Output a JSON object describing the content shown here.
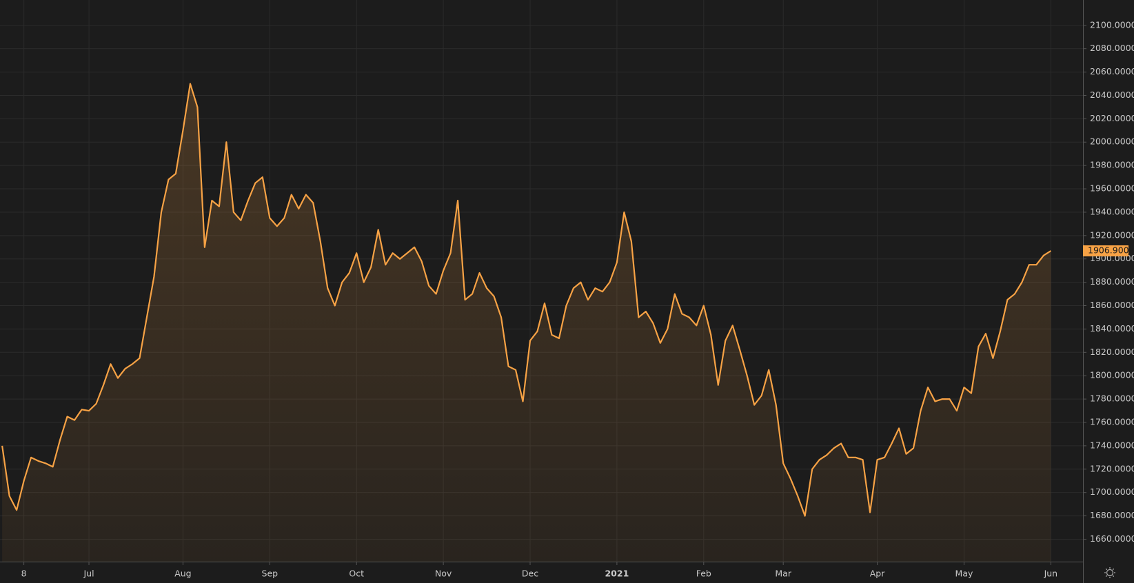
{
  "chart_data": {
    "type": "area",
    "categories": [
      null,
      null,
      null,
      "8",
      null,
      null,
      null,
      null,
      null,
      null,
      null,
      null,
      "Jul",
      null,
      null,
      null,
      null,
      null,
      null,
      null,
      null,
      null,
      null,
      null,
      null,
      "Aug",
      null,
      null,
      null,
      null,
      null,
      null,
      null,
      null,
      null,
      null,
      null,
      "Sep",
      null,
      null,
      null,
      null,
      null,
      null,
      null,
      null,
      null,
      null,
      null,
      "Oct",
      null,
      null,
      null,
      null,
      null,
      null,
      null,
      null,
      null,
      null,
      null,
      "Nov",
      null,
      null,
      null,
      null,
      null,
      null,
      null,
      null,
      null,
      null,
      null,
      "Dec",
      null,
      null,
      null,
      null,
      null,
      null,
      null,
      null,
      null,
      null,
      null,
      "2021",
      null,
      null,
      null,
      null,
      null,
      null,
      null,
      null,
      null,
      null,
      null,
      "Feb",
      null,
      null,
      null,
      null,
      null,
      null,
      null,
      null,
      null,
      null,
      "Mar",
      null,
      null,
      null,
      null,
      null,
      null,
      null,
      null,
      null,
      null,
      null,
      null,
      "Apr",
      null,
      null,
      null,
      null,
      null,
      null,
      null,
      null,
      null,
      null,
      null,
      "May",
      null,
      null,
      null,
      null,
      null,
      null,
      null,
      null,
      null,
      null,
      null,
      "Jun"
    ],
    "series": [
      {
        "color": "#f7a245",
        "values": [
          1740,
          1697,
          1685,
          1710,
          1730,
          1727,
          1725,
          1722,
          1745,
          1765,
          1762,
          1771,
          1770,
          1776,
          1792,
          1810,
          1798,
          1806,
          1810,
          1815,
          1850,
          1885,
          1940,
          1968,
          1973,
          2010,
          2050,
          2030,
          1910,
          1950,
          1945,
          2000,
          1940,
          1933,
          1950,
          1965,
          1970,
          1935,
          1928,
          1935,
          1955,
          1943,
          1955,
          1948,
          1915,
          1875,
          1860,
          1880,
          1888,
          1905,
          1880,
          1893,
          1925,
          1895,
          1905,
          1900,
          1905,
          1910,
          1898,
          1877,
          1870,
          1890,
          1905,
          1950,
          1865,
          1870,
          1888,
          1875,
          1868,
          1850,
          1808,
          1805,
          1778,
          1830,
          1838,
          1862,
          1835,
          1832,
          1860,
          1875,
          1880,
          1865,
          1875,
          1872,
          1880,
          1897,
          1940,
          1915,
          1850,
          1855,
          1845,
          1828,
          1840,
          1870,
          1853,
          1850,
          1843,
          1860,
          1835,
          1792,
          1830,
          1843,
          1822,
          1800,
          1775,
          1783,
          1805,
          1775,
          1725,
          1712,
          1697,
          1680,
          1720,
          1728,
          1732,
          1738,
          1742,
          1730,
          1730,
          1728,
          1683,
          1728,
          1730,
          1742,
          1755,
          1733,
          1738,
          1770,
          1790,
          1778,
          1780,
          1780,
          1770,
          1790,
          1785,
          1825,
          1836,
          1815,
          1838,
          1865,
          1870,
          1880,
          1895,
          1895,
          1903,
          1906.9
        ]
      }
    ],
    "last_value_label": "1906.9000",
    "ylim": [
      1640.8,
      2121.7
    ],
    "yticks": [
      {
        "value": 1660,
        "label": "1660.0000"
      },
      {
        "value": 1680,
        "label": "1680.0000"
      },
      {
        "value": 1700,
        "label": "1700.0000"
      },
      {
        "value": 1720,
        "label": "1720.0000"
      },
      {
        "value": 1740,
        "label": "1740.0000"
      },
      {
        "value": 1760,
        "label": "1760.0000"
      },
      {
        "value": 1780,
        "label": "1780.0000"
      },
      {
        "value": 1800,
        "label": "1800.0000"
      },
      {
        "value": 1820,
        "label": "1820.0000"
      },
      {
        "value": 1840,
        "label": "1840.0000"
      },
      {
        "value": 1860,
        "label": "1860.0000"
      },
      {
        "value": 1880,
        "label": "1880.0000"
      },
      {
        "value": 1900,
        "label": "1900.0000"
      },
      {
        "value": 1920,
        "label": "1920.0000"
      },
      {
        "value": 1940,
        "label": "1940.0000"
      },
      {
        "value": 1960,
        "label": "1960.0000"
      },
      {
        "value": 1980,
        "label": "1980.0000"
      },
      {
        "value": 2000,
        "label": "2000.0000"
      },
      {
        "value": 2020,
        "label": "2020.0000"
      },
      {
        "value": 2040,
        "label": "2040.0000"
      },
      {
        "value": 2060,
        "label": "2060.0000"
      },
      {
        "value": 2080,
        "label": "2080.0000"
      },
      {
        "value": 2100,
        "label": "2100.0000"
      }
    ],
    "grid": true
  }
}
